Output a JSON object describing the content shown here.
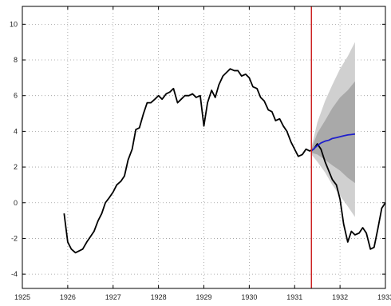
{
  "chart_data": {
    "type": "line",
    "title": "",
    "xlabel": "",
    "ylabel": "",
    "xlim": [
      1925,
      1933
    ],
    "ylim": [
      -4.8,
      11
    ],
    "x_ticks": [
      1925,
      1926,
      1927,
      1928,
      1929,
      1930,
      1931,
      1932,
      1933
    ],
    "y_ticks": [
      -4,
      -2,
      0,
      2,
      4,
      6,
      8,
      10
    ],
    "grid": true,
    "legend": "none",
    "vertical_marker": {
      "x": 1931.37,
      "color": "#cc2222"
    },
    "series": [
      {
        "color": "#000000",
        "points": [
          [
            1925.92,
            -0.6
          ],
          [
            1926.0,
            -2.2
          ],
          [
            1926.08,
            -2.6
          ],
          [
            1926.17,
            -2.8
          ],
          [
            1926.25,
            -2.7
          ],
          [
            1926.33,
            -2.6
          ],
          [
            1926.42,
            -2.2
          ],
          [
            1926.5,
            -1.9
          ],
          [
            1926.58,
            -1.6
          ],
          [
            1926.67,
            -1.0
          ],
          [
            1926.75,
            -0.6
          ],
          [
            1926.83,
            0.0
          ],
          [
            1926.92,
            0.3
          ],
          [
            1927.0,
            0.6
          ],
          [
            1927.08,
            1.0
          ],
          [
            1927.17,
            1.2
          ],
          [
            1927.25,
            1.5
          ],
          [
            1927.33,
            2.4
          ],
          [
            1927.42,
            3.0
          ],
          [
            1927.5,
            4.1
          ],
          [
            1927.58,
            4.2
          ],
          [
            1927.67,
            5.0
          ],
          [
            1927.75,
            5.6
          ],
          [
            1927.83,
            5.6
          ],
          [
            1927.92,
            5.8
          ],
          [
            1928.0,
            6.0
          ],
          [
            1928.08,
            5.8
          ],
          [
            1928.17,
            6.1
          ],
          [
            1928.25,
            6.2
          ],
          [
            1928.33,
            6.4
          ],
          [
            1928.42,
            5.6
          ],
          [
            1928.5,
            5.8
          ],
          [
            1928.58,
            6.0
          ],
          [
            1928.67,
            6.0
          ],
          [
            1928.75,
            6.1
          ],
          [
            1928.83,
            5.9
          ],
          [
            1928.92,
            6.0
          ],
          [
            1929.0,
            4.3
          ],
          [
            1929.08,
            5.6
          ],
          [
            1929.17,
            6.3
          ],
          [
            1929.25,
            5.9
          ],
          [
            1929.33,
            6.6
          ],
          [
            1929.42,
            7.1
          ],
          [
            1929.5,
            7.3
          ],
          [
            1929.58,
            7.5
          ],
          [
            1929.67,
            7.4
          ],
          [
            1929.75,
            7.4
          ],
          [
            1929.83,
            7.1
          ],
          [
            1929.92,
            7.2
          ],
          [
            1930.0,
            7.0
          ],
          [
            1930.08,
            6.5
          ],
          [
            1930.17,
            6.4
          ],
          [
            1930.25,
            5.9
          ],
          [
            1930.33,
            5.7
          ],
          [
            1930.42,
            5.2
          ],
          [
            1930.5,
            5.1
          ],
          [
            1930.58,
            4.6
          ],
          [
            1930.67,
            4.7
          ],
          [
            1930.75,
            4.3
          ],
          [
            1930.83,
            4.0
          ],
          [
            1930.92,
            3.4
          ],
          [
            1931.0,
            3.0
          ],
          [
            1931.08,
            2.6
          ],
          [
            1931.17,
            2.7
          ],
          [
            1931.25,
            3.0
          ],
          [
            1931.33,
            2.9
          ],
          [
            1931.42,
            3.0
          ],
          [
            1931.5,
            3.3
          ],
          [
            1931.58,
            3.0
          ],
          [
            1931.67,
            2.3
          ],
          [
            1931.75,
            1.8
          ],
          [
            1931.83,
            1.3
          ],
          [
            1931.92,
            1.0
          ],
          [
            1932.0,
            0.2
          ],
          [
            1932.08,
            -1.2
          ],
          [
            1932.17,
            -2.2
          ],
          [
            1932.25,
            -1.6
          ],
          [
            1932.33,
            -1.8
          ],
          [
            1932.42,
            -1.7
          ],
          [
            1932.5,
            -1.4
          ],
          [
            1932.58,
            -1.7
          ],
          [
            1932.67,
            -2.6
          ],
          [
            1932.75,
            -2.5
          ],
          [
            1932.83,
            -1.5
          ],
          [
            1932.92,
            -0.3
          ],
          [
            1933.0,
            0.0
          ]
        ]
      },
      {
        "color": "#1f1fcc",
        "points": [
          [
            1931.37,
            2.9
          ],
          [
            1931.5,
            3.2
          ],
          [
            1931.58,
            3.35
          ],
          [
            1931.67,
            3.45
          ],
          [
            1931.75,
            3.5
          ],
          [
            1931.83,
            3.6
          ],
          [
            1931.92,
            3.65
          ],
          [
            1932.0,
            3.7
          ],
          [
            1932.08,
            3.75
          ],
          [
            1932.17,
            3.8
          ],
          [
            1932.25,
            3.82
          ],
          [
            1932.33,
            3.85
          ]
        ]
      }
    ],
    "bands": [
      {
        "color": "#d0d0d0",
        "x": [
          1931.37,
          1931.5,
          1931.67,
          1931.83,
          1932.0,
          1932.17,
          1932.33
        ],
        "lower": [
          2.7,
          2.3,
          1.7,
          1.0,
          0.4,
          -0.2,
          -0.8
        ],
        "upper": [
          3.1,
          4.5,
          5.7,
          6.6,
          7.5,
          8.2,
          9.0
        ]
      },
      {
        "color": "#a9a9a9",
        "x": [
          1931.37,
          1931.5,
          1931.67,
          1931.83,
          1932.0,
          1932.17,
          1932.33
        ],
        "lower": [
          2.8,
          2.7,
          2.4,
          2.1,
          1.8,
          1.4,
          1.1
        ],
        "upper": [
          3.0,
          3.9,
          4.6,
          5.3,
          5.9,
          6.3,
          6.8
        ]
      }
    ]
  }
}
